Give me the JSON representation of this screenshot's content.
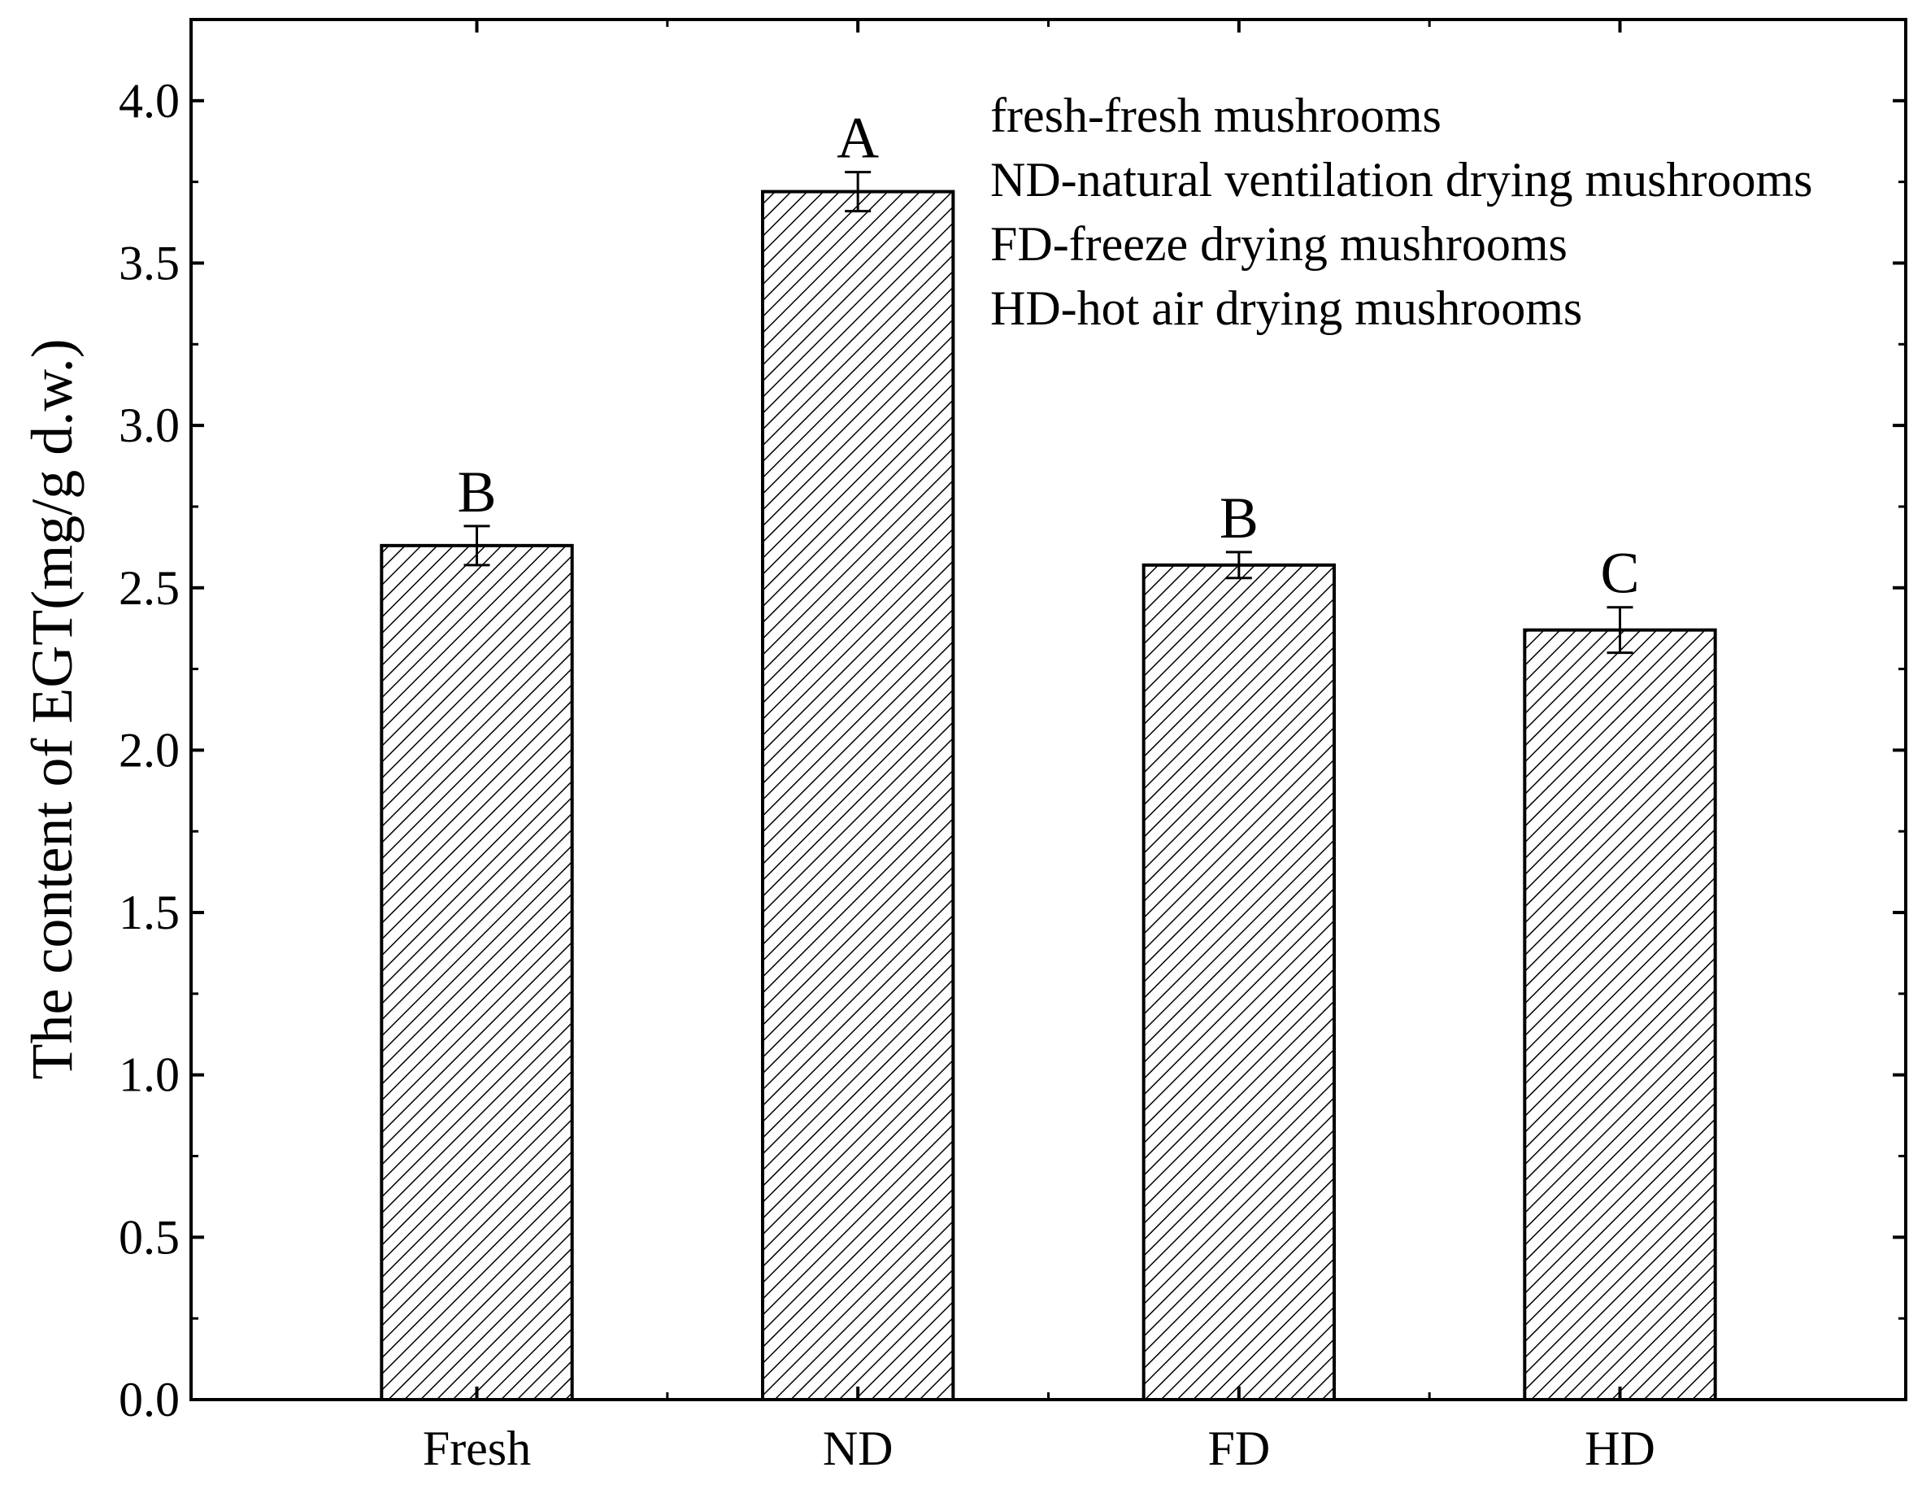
{
  "chart_data": {
    "type": "bar",
    "categories": [
      "Fresh",
      "ND",
      "FD",
      "HD"
    ],
    "values": [
      2.63,
      3.72,
      2.57,
      2.37
    ],
    "errors": [
      0.06,
      0.06,
      0.04,
      0.07
    ],
    "significance_letters": [
      "B",
      "A",
      "B",
      "C"
    ],
    "ylabel": "The content of EGT(mg/g d.w.)",
    "xlabel": "",
    "ylim": [
      0,
      4.25
    ],
    "yticks": [
      0.0,
      0.5,
      1.0,
      1.5,
      2.0,
      2.5,
      3.0,
      3.5,
      4.0
    ],
    "ytick_labels": [
      "0.0",
      "0.5",
      "1.0",
      "1.5",
      "2.0",
      "2.5",
      "3.0",
      "3.5",
      "4.0"
    ],
    "bar_fill": "hatched",
    "bar_color": "#000000",
    "annotations": [
      "fresh-fresh mushrooms",
      "ND-natural ventilation drying mushrooms",
      "FD-freeze drying mushrooms",
      "HD-hot air drying mushrooms"
    ],
    "annotation_position": "top-right",
    "grid": false
  }
}
